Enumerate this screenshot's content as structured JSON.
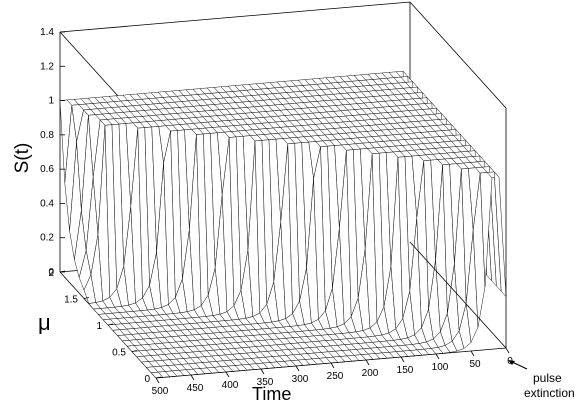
{
  "chart_data": {
    "type": "surface",
    "ylabel": "S(t)",
    "mu_label": "μ",
    "xlabel": "Time",
    "z_ticks": [
      "0",
      "0.2",
      "0.4",
      "0.6",
      "0.8",
      "1",
      "1.2",
      "1.4"
    ],
    "mu_ticks": [
      "0",
      "0.5",
      "1",
      "1.5",
      "2"
    ],
    "time_ticks": [
      "500",
      "450",
      "400",
      "350",
      "300",
      "250",
      "200",
      "150",
      "100",
      "50",
      "0"
    ],
    "zlim": [
      0,
      1.4
    ],
    "mu_range": [
      0,
      2
    ],
    "time_range": [
      0,
      500
    ],
    "annotation": [
      "pulse",
      "extinction"
    ],
    "surface": {
      "description_values": {
        "plateau_level": 1.0,
        "decayed_level": 0.0
      },
      "extinction_time_by_mu": [
        {
          "mu": 0.0,
          "t": 20
        },
        {
          "mu": 0.25,
          "t": 60
        },
        {
          "mu": 0.5,
          "t": 120
        },
        {
          "mu": 0.75,
          "t": 200
        },
        {
          "mu": 1.0,
          "t": 290
        },
        {
          "mu": 1.25,
          "t": 380
        },
        {
          "mu": 1.5,
          "t": 470
        },
        {
          "mu": 2.0,
          "t": 500
        }
      ]
    }
  }
}
